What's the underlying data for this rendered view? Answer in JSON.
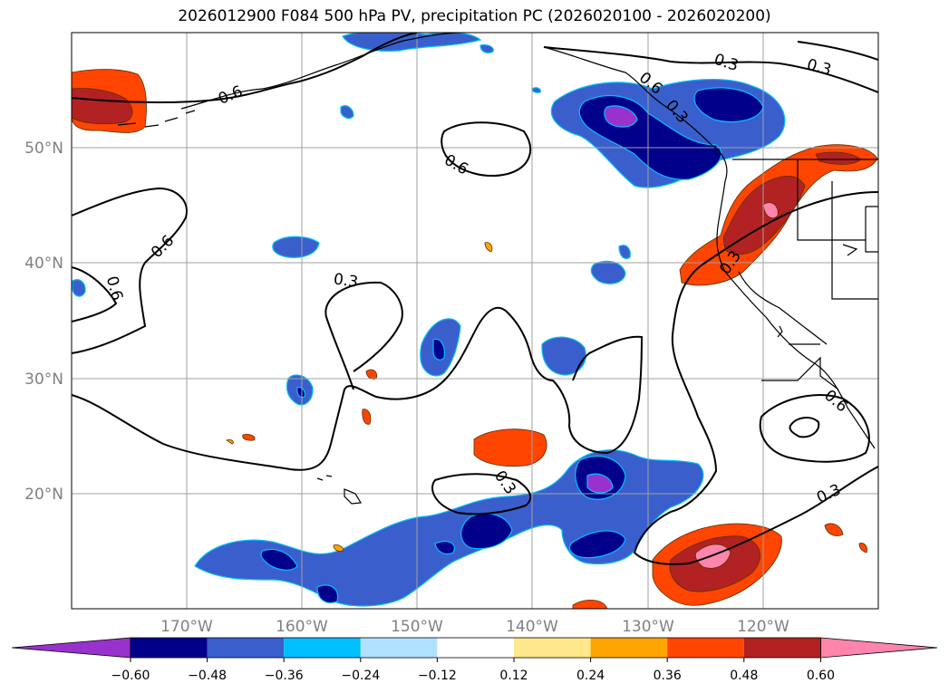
{
  "title": "2026012900 F084 500 hPa PV, precipitation PC (2026020100 - 2026020200)",
  "map": {
    "lon_range": [
      -180,
      -110
    ],
    "lat_range": [
      10,
      60
    ],
    "lon_ticks": [
      {
        "value": -170,
        "label": "170°W"
      },
      {
        "value": -160,
        "label": "160°W"
      },
      {
        "value": -150,
        "label": "150°W"
      },
      {
        "value": -140,
        "label": "140°W"
      },
      {
        "value": -130,
        "label": "130°W"
      },
      {
        "value": -120,
        "label": "120°W"
      }
    ],
    "lat_ticks": [
      {
        "value": 20,
        "label": "20°N"
      },
      {
        "value": 30,
        "label": "30°N"
      },
      {
        "value": 40,
        "label": "40°N"
      },
      {
        "value": 50,
        "label": "50°N"
      }
    ],
    "contour_labels": [
      "0.6",
      "0.3",
      "0.6",
      "0.3",
      "0.6",
      "0.3",
      "0.3",
      "0.6",
      "0.6",
      "0.3",
      "0.3",
      "0.6",
      "0.3"
    ]
  },
  "colorbar": {
    "ticks": [
      "−0.60",
      "−0.48",
      "−0.36",
      "−0.24",
      "−0.12",
      "0.12",
      "0.24",
      "0.36",
      "0.48",
      "0.60"
    ],
    "colors": {
      "neg_extend": "#9932cc",
      "levels": [
        "#00008b",
        "#3a5fcd",
        "#00bfff",
        "#b0e2ff",
        "#ffffff",
        "#ffe88c",
        "#ffa500",
        "#ff4500",
        "#b22222",
        "#ff85ad"
      ],
      "pos_extend": "#ff85ad"
    }
  }
}
